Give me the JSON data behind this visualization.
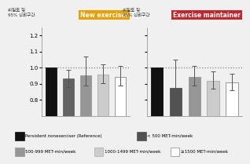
{
  "left_title": "New exerciser",
  "right_title": "Exercise maintainer",
  "left_title_color": "#E8A000",
  "right_title_color": "#C0282D",
  "ylabel_korean": "위험도 및\n95% 신뢰구간",
  "ylim": [
    0.7,
    1.25
  ],
  "yticks": [
    0.8,
    0.9,
    1.0,
    1.1,
    1.2
  ],
  "dotted_line_y": 1.0,
  "left_bars": {
    "values": [
      1.0,
      0.933,
      0.955,
      0.958,
      0.945
    ],
    "errors_low": [
      0.0,
      0.055,
      0.065,
      0.055,
      0.055
    ],
    "errors_high": [
      0.0,
      0.055,
      0.115,
      0.065,
      0.065
    ],
    "colors": [
      "#111111",
      "#636363",
      "#969696",
      "#cccccc",
      "#ffffff"
    ],
    "edgecolors": [
      "#111111",
      "#636363",
      "#969696",
      "#aaaaaa",
      "#888888"
    ]
  },
  "right_bars": {
    "values": [
      1.0,
      0.873,
      0.945,
      0.918,
      0.908
    ],
    "errors_low": [
      0.0,
      0.055,
      0.055,
      0.048,
      0.048
    ],
    "errors_high": [
      0.0,
      0.175,
      0.065,
      0.06,
      0.055
    ],
    "colors": [
      "#111111",
      "#525252",
      "#969696",
      "#cccccc",
      "#ffffff"
    ],
    "edgecolors": [
      "#111111",
      "#525252",
      "#969696",
      "#aaaaaa",
      "#888888"
    ]
  },
  "legend_items": [
    {
      "label": "Persistent nonexerciser (Reference)",
      "color": "#111111",
      "edge": "#111111"
    },
    {
      "label": "< 500 MET-min/week",
      "color": "#525252",
      "edge": "#525252"
    },
    {
      "label": "500-999 MET-min/week",
      "color": "#969696",
      "edge": "#969696"
    },
    {
      "label": "1000-1499 MET-min/week",
      "color": "#cccccc",
      "edge": "#aaaaaa"
    },
    {
      "label": "≥1500 MET-min/week",
      "color": "#ffffff",
      "edge": "#888888"
    }
  ],
  "background_color": "#f0f0f0"
}
